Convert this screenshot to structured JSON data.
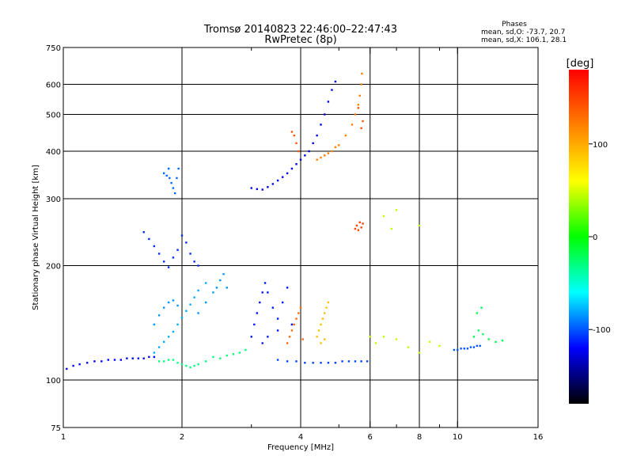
{
  "chart_data": {
    "type": "scatter",
    "title": "Tromsø 20140823 22:46:00–22:47:43",
    "subtitle": "RwPretec (8p)",
    "xlabel": "Frequency [MHz]",
    "ylabel": "Stationary phase Virtual Height [km]",
    "x_scale": "log",
    "y_scale": "log",
    "xlim": [
      1,
      16
    ],
    "ylim": [
      75,
      750
    ],
    "x_ticks": [
      1,
      2,
      4,
      6,
      8,
      10,
      16
    ],
    "x_tick_labels": [
      "1",
      "2",
      "4",
      "6",
      "8",
      "10",
      "16"
    ],
    "x_grid": [
      2,
      4,
      6,
      8,
      10
    ],
    "x_minor": [
      3,
      5,
      7,
      9
    ],
    "y_ticks": [
      75,
      100,
      200,
      300,
      400,
      500,
      600,
      750
    ],
    "y_tick_labels": [
      "75",
      "100",
      "200",
      "300",
      "400",
      "500",
      "600",
      "750"
    ],
    "y_grid": [
      100,
      200,
      300,
      400,
      500,
      600
    ],
    "grid": true,
    "stats": {
      "heading": "Phases",
      "line_o": "mean, sd,O: -73.7, 20.7",
      "line_x": "mean, sd,X: 106.1, 28.1"
    },
    "colorbar": {
      "label": "[deg]",
      "range": [
        -180,
        180
      ],
      "ticks": [
        100,
        0,
        -100
      ],
      "tick_labels": [
        "100",
        "0",
        "-100"
      ],
      "colormap": "rainbow",
      "stops": [
        "#ff0000",
        "#ff8000",
        "#ffff00",
        "#00ff00",
        "#00ffff",
        "#0000ff",
        "#000000"
      ]
    },
    "series": [
      {
        "phase": -120,
        "points": [
          [
            1.02,
            107
          ],
          [
            1.06,
            109
          ],
          [
            1.1,
            110
          ],
          [
            1.15,
            111
          ],
          [
            1.2,
            112
          ],
          [
            1.25,
            112
          ],
          [
            1.3,
            113
          ],
          [
            1.35,
            113
          ],
          [
            1.4,
            113
          ],
          [
            1.45,
            114
          ],
          [
            1.5,
            114
          ],
          [
            1.55,
            114
          ],
          [
            1.6,
            114
          ],
          [
            1.65,
            115
          ],
          [
            1.7,
            115
          ]
        ]
      },
      {
        "phase": -30,
        "points": [
          [
            1.75,
            112
          ],
          [
            1.8,
            112
          ],
          [
            1.85,
            113
          ],
          [
            1.9,
            113
          ],
          [
            1.95,
            111
          ],
          [
            2.0,
            110
          ],
          [
            2.05,
            109
          ],
          [
            2.1,
            108
          ],
          [
            2.15,
            109
          ],
          [
            2.2,
            110
          ],
          [
            2.3,
            112
          ],
          [
            2.4,
            115
          ],
          [
            2.5,
            114
          ],
          [
            2.6,
            116
          ],
          [
            2.7,
            117
          ],
          [
            2.8,
            118
          ],
          [
            2.9,
            120
          ]
        ]
      },
      {
        "phase": -80,
        "points": [
          [
            1.7,
            118
          ],
          [
            1.75,
            122
          ],
          [
            1.8,
            126
          ],
          [
            1.85,
            130
          ],
          [
            1.9,
            134
          ],
          [
            1.95,
            140
          ],
          [
            2.0,
            146
          ],
          [
            2.05,
            152
          ],
          [
            2.1,
            158
          ],
          [
            2.15,
            165
          ],
          [
            2.2,
            172
          ],
          [
            2.3,
            180
          ]
        ]
      },
      {
        "phase": -95,
        "points": [
          [
            1.8,
            350
          ],
          [
            1.83,
            345
          ],
          [
            1.86,
            340
          ],
          [
            1.88,
            330
          ],
          [
            1.9,
            320
          ],
          [
            1.92,
            310
          ],
          [
            1.94,
            340
          ],
          [
            1.96,
            360
          ],
          [
            1.85,
            360
          ]
        ]
      },
      {
        "phase": -110,
        "points": [
          [
            1.6,
            245
          ],
          [
            1.65,
            235
          ],
          [
            1.7,
            225
          ],
          [
            1.75,
            215
          ],
          [
            1.8,
            205
          ],
          [
            1.85,
            198
          ],
          [
            1.9,
            210
          ],
          [
            1.95,
            220
          ],
          [
            2.0,
            240
          ],
          [
            2.05,
            230
          ],
          [
            2.1,
            215
          ],
          [
            2.15,
            205
          ],
          [
            2.2,
            200
          ]
        ]
      },
      {
        "phase": -85,
        "points": [
          [
            1.7,
            140
          ],
          [
            1.75,
            148
          ],
          [
            1.8,
            155
          ],
          [
            1.85,
            160
          ],
          [
            1.9,
            162
          ],
          [
            1.95,
            157
          ],
          [
            2.2,
            150
          ],
          [
            2.3,
            160
          ],
          [
            2.4,
            170
          ],
          [
            2.45,
            175
          ],
          [
            2.5,
            183
          ],
          [
            2.55,
            190
          ],
          [
            2.6,
            175
          ]
        ]
      },
      {
        "phase": -125,
        "points": [
          [
            3.0,
            320
          ],
          [
            3.1,
            318
          ],
          [
            3.2,
            317
          ],
          [
            3.3,
            322
          ],
          [
            3.4,
            328
          ],
          [
            3.5,
            335
          ],
          [
            3.6,
            342
          ],
          [
            3.7,
            350
          ],
          [
            3.8,
            360
          ],
          [
            3.9,
            370
          ],
          [
            4.0,
            380
          ],
          [
            4.1,
            390
          ],
          [
            4.2,
            400
          ],
          [
            4.3,
            420
          ],
          [
            4.4,
            440
          ],
          [
            4.5,
            470
          ],
          [
            4.6,
            500
          ],
          [
            4.7,
            540
          ],
          [
            4.8,
            580
          ],
          [
            4.9,
            610
          ]
        ]
      },
      {
        "phase": 120,
        "points": [
          [
            4.4,
            380
          ],
          [
            4.5,
            385
          ],
          [
            4.6,
            390
          ],
          [
            4.7,
            395
          ],
          [
            4.8,
            400
          ],
          [
            4.9,
            410
          ],
          [
            5.0,
            415
          ],
          [
            5.2,
            440
          ],
          [
            5.4,
            470
          ],
          [
            5.5,
            500
          ],
          [
            5.6,
            530
          ],
          [
            5.65,
            560
          ],
          [
            5.7,
            600
          ],
          [
            5.72,
            640
          ]
        ]
      },
      {
        "phase": 140,
        "points": [
          [
            3.8,
            450
          ],
          [
            3.85,
            440
          ],
          [
            3.9,
            420
          ],
          [
            3.95,
            400
          ],
          [
            5.7,
            460
          ],
          [
            5.75,
            480
          ],
          [
            5.6,
            520
          ]
        ]
      },
      {
        "phase": -115,
        "points": [
          [
            3.0,
            130
          ],
          [
            3.05,
            140
          ],
          [
            3.1,
            150
          ],
          [
            3.15,
            160
          ],
          [
            3.2,
            170
          ],
          [
            3.25,
            180
          ],
          [
            3.3,
            170
          ],
          [
            3.4,
            155
          ],
          [
            3.5,
            145
          ],
          [
            3.6,
            160
          ],
          [
            3.7,
            175
          ],
          [
            3.2,
            125
          ],
          [
            3.3,
            130
          ],
          [
            3.5,
            135
          ],
          [
            3.8,
            140
          ]
        ]
      },
      {
        "phase": 130,
        "points": [
          [
            3.75,
            130
          ],
          [
            3.8,
            135
          ],
          [
            3.85,
            140
          ],
          [
            3.9,
            145
          ],
          [
            3.95,
            150
          ],
          [
            4.0,
            155
          ],
          [
            3.7,
            125
          ],
          [
            4.05,
            128
          ]
        ]
      },
      {
        "phase": 90,
        "points": [
          [
            4.4,
            130
          ],
          [
            4.45,
            135
          ],
          [
            4.5,
            140
          ],
          [
            4.55,
            145
          ],
          [
            4.6,
            150
          ],
          [
            4.65,
            155
          ],
          [
            4.7,
            160
          ],
          [
            4.5,
            125
          ],
          [
            4.6,
            128
          ]
        ]
      },
      {
        "phase": -105,
        "points": [
          [
            3.5,
            113
          ],
          [
            3.7,
            112
          ],
          [
            3.9,
            112
          ],
          [
            4.1,
            111
          ],
          [
            4.3,
            111
          ],
          [
            4.5,
            111
          ],
          [
            4.7,
            111
          ],
          [
            4.9,
            111
          ],
          [
            5.1,
            112
          ],
          [
            5.3,
            112
          ],
          [
            5.5,
            112
          ],
          [
            5.7,
            112
          ],
          [
            5.9,
            112
          ]
        ]
      },
      {
        "phase": 150,
        "points": [
          [
            5.5,
            250
          ],
          [
            5.55,
            255
          ],
          [
            5.6,
            248
          ],
          [
            5.65,
            260
          ],
          [
            5.7,
            252
          ],
          [
            5.75,
            258
          ]
        ]
      },
      {
        "phase": -100,
        "points": [
          [
            9.8,
            120
          ],
          [
            10.0,
            120
          ],
          [
            10.2,
            121
          ],
          [
            10.4,
            121
          ],
          [
            10.6,
            121
          ],
          [
            10.8,
            122
          ],
          [
            11.0,
            122
          ],
          [
            11.2,
            123
          ],
          [
            11.4,
            123
          ]
        ]
      },
      {
        "phase": -20,
        "points": [
          [
            11.0,
            130
          ],
          [
            11.3,
            135
          ],
          [
            11.6,
            132
          ],
          [
            12.0,
            128
          ],
          [
            12.5,
            126
          ],
          [
            13.0,
            127
          ],
          [
            11.2,
            150
          ],
          [
            11.5,
            155
          ]
        ]
      },
      {
        "phase": 45,
        "points": [
          [
            6.0,
            130
          ],
          [
            6.2,
            125
          ],
          [
            6.5,
            130
          ],
          [
            7.0,
            128
          ],
          [
            7.5,
            122
          ],
          [
            8.0,
            118
          ],
          [
            8.5,
            126
          ],
          [
            9.0,
            123
          ],
          [
            6.8,
            250
          ],
          [
            6.5,
            270
          ],
          [
            7.0,
            280
          ],
          [
            8.0,
            255
          ]
        ]
      }
    ]
  }
}
